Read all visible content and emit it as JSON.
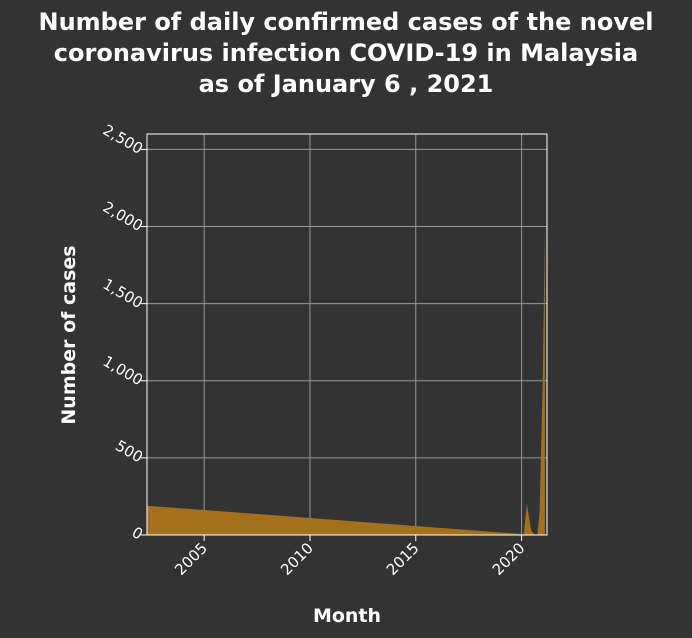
{
  "chart_data": {
    "type": "area",
    "title": "Number of daily confirmed cases of the novel coronavirus infection COVID-19 in Malaysia as of January 6 , 2021",
    "title_lines": [
      "Number of daily confirmed cases of the novel",
      "coronavirus infection COVID-19 in Malaysia",
      "as of January 6 , 2021"
    ],
    "xlabel": "Month",
    "ylabel": "Number of cases",
    "xlim": [
      2002.3,
      2021.2
    ],
    "ylim": [
      0,
      2600
    ],
    "x_ticks": [
      2005,
      2010,
      2015,
      2020
    ],
    "x_tick_labels": [
      "2005",
      "2010",
      "2015",
      "2020"
    ],
    "y_ticks": [
      0,
      500,
      1000,
      1500,
      2000,
      2500
    ],
    "y_tick_labels": [
      "0",
      "500",
      "1,000",
      "1,500",
      "2,000",
      "2,500"
    ],
    "grid": true,
    "series": [
      {
        "x": [
          2002.3,
          2020.1,
          2020.25,
          2020.45,
          2020.6,
          2020.75,
          2020.85,
          2021.0,
          2021.1
        ],
        "y": [
          190,
          5,
          200,
          30,
          5,
          5,
          150,
          1000,
          2000
        ]
      }
    ],
    "colors": {
      "area": "#a5701c",
      "background": "#333333",
      "grid": "#999999",
      "frame": "#ffffff",
      "text": "#ffffff"
    }
  }
}
